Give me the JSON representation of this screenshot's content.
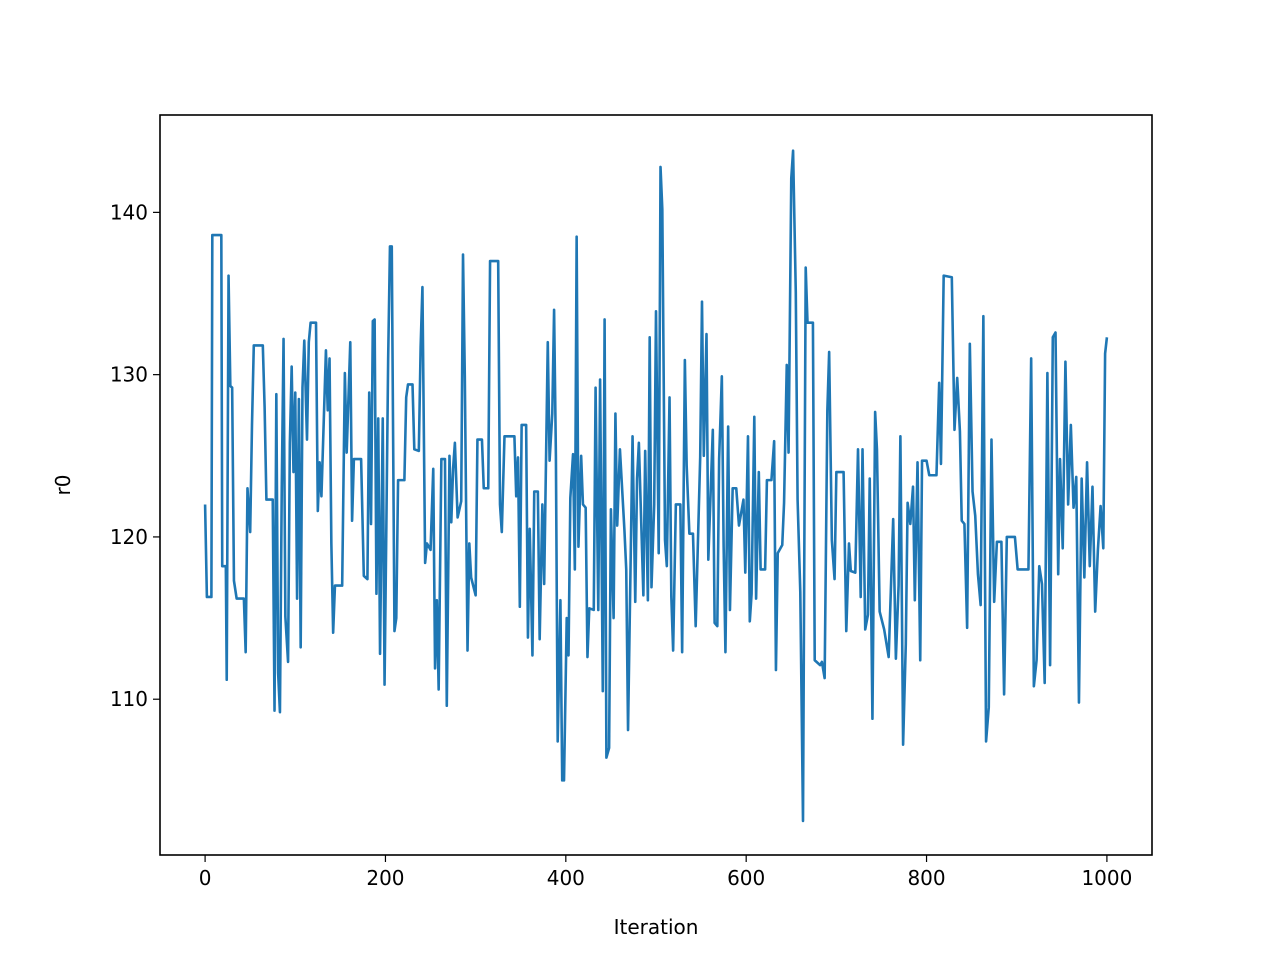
{
  "chart_data": {
    "type": "line",
    "x_label": "Iteration",
    "y_label": "r0",
    "xlim": [
      -50,
      1050
    ],
    "ylim": [
      100.4,
      146
    ],
    "xticks": [
      0,
      200,
      400,
      600,
      800,
      1000
    ],
    "yticks": [
      110,
      120,
      130,
      140
    ],
    "x": [
      0,
      2,
      7,
      8,
      18,
      19,
      23,
      24,
      26,
      28,
      30,
      32,
      35,
      43,
      45,
      47,
      50,
      52,
      54,
      64,
      66,
      68,
      75,
      77,
      79,
      81,
      83,
      85,
      87,
      89,
      92,
      94,
      96,
      98,
      100,
      102,
      104,
      106,
      108,
      110,
      113,
      115,
      117,
      123,
      125,
      127,
      129,
      134,
      136,
      138,
      140,
      142,
      144,
      152,
      155,
      157,
      161,
      163,
      165,
      173,
      176,
      180,
      182,
      184,
      186,
      188,
      190,
      192,
      194,
      197,
      199,
      201,
      203,
      205,
      207,
      210,
      212,
      214,
      221,
      223,
      225,
      230,
      232,
      237,
      239,
      241,
      244,
      246,
      250,
      253,
      255,
      257,
      259,
      262,
      266,
      268,
      271,
      273,
      275,
      277,
      280,
      284,
      286,
      288,
      291,
      293,
      295,
      300,
      302,
      307,
      309,
      314,
      316,
      325,
      327,
      329,
      332,
      343,
      345,
      347,
      349,
      351,
      356,
      358,
      360,
      363,
      365,
      369,
      371,
      374,
      376,
      378,
      380,
      382,
      385,
      387,
      389,
      391,
      394,
      396,
      398,
      401,
      403,
      405,
      408,
      410,
      412,
      414,
      417,
      419,
      422,
      424,
      426,
      431,
      433,
      436,
      438,
      441,
      443,
      445,
      448,
      450,
      453,
      455,
      457,
      460,
      465,
      467,
      469,
      474,
      477,
      479,
      481,
      486,
      488,
      491,
      493,
      495,
      498,
      500,
      503,
      505,
      507,
      510,
      512,
      515,
      517,
      519,
      522,
      527,
      529,
      532,
      534,
      537,
      541,
      544,
      549,
      551,
      553,
      556,
      558,
      563,
      565,
      568,
      570,
      573,
      575,
      577,
      580,
      582,
      585,
      589,
      592,
      597,
      599,
      602,
      604,
      606,
      609,
      611,
      614,
      616,
      621,
      623,
      628,
      631,
      633,
      635,
      640,
      642,
      645,
      647,
      650,
      652,
      655,
      657,
      660,
      663,
      666,
      668,
      674,
      676,
      682,
      684,
      687,
      690,
      692,
      695,
      698,
      700,
      708,
      711,
      714,
      716,
      721,
      724,
      727,
      729,
      732,
      735,
      737,
      740,
      743,
      745,
      748,
      753,
      758,
      763,
      766,
      769,
      771,
      774,
      777,
      779,
      782,
      785,
      787,
      790,
      793,
      795,
      800,
      803,
      811,
      814,
      816,
      819,
      828,
      831,
      834,
      837,
      839,
      842,
      845,
      848,
      851,
      854,
      857,
      860,
      863,
      866,
      869,
      872,
      875,
      878,
      883,
      886,
      889,
      898,
      901,
      913,
      916,
      919,
      922,
      925,
      928,
      931,
      934,
      937,
      940,
      943,
      946,
      948,
      951,
      954,
      957,
      960,
      963,
      966,
      969,
      972,
      975,
      978,
      981,
      984,
      987,
      990,
      993,
      996,
      998,
      1000
    ],
    "series": [
      {
        "color": "#1f77b4",
        "values": [
          122,
          116.3,
          116.3,
          138.6,
          138.6,
          118.2,
          118.2,
          111.2,
          136.1,
          129.3,
          129.2,
          117.3,
          116.2,
          116.2,
          112.9,
          123,
          120.3,
          126.9,
          131.8,
          131.8,
          128,
          122.3,
          122.3,
          109.3,
          128.8,
          111.6,
          109.2,
          123,
          132.2,
          115.1,
          112.3,
          125.8,
          130.5,
          124,
          128.9,
          116.2,
          128.5,
          113.2,
          129.2,
          132.1,
          126,
          132,
          133.2,
          133.2,
          121.6,
          124.6,
          122.5,
          131.5,
          127.8,
          131,
          119.6,
          114.1,
          117,
          117,
          130.1,
          125.2,
          132,
          121,
          124.8,
          124.8,
          117.6,
          117.4,
          128.9,
          120.8,
          133.3,
          133.4,
          116.5,
          127.3,
          112.8,
          127.3,
          110.9,
          120.7,
          131,
          137.9,
          137.9,
          114.2,
          115,
          123.5,
          123.5,
          128.6,
          129.4,
          129.4,
          125.4,
          125.3,
          131.7,
          135.4,
          118.4,
          119.6,
          119.2,
          124.2,
          111.9,
          116.1,
          110.6,
          124.8,
          124.8,
          109.6,
          125,
          120.9,
          124.2,
          125.8,
          121.2,
          122.2,
          137.4,
          129.9,
          113,
          119.6,
          117.5,
          116.4,
          126,
          126,
          123,
          123,
          137,
          137,
          122,
          120.3,
          126.2,
          126.2,
          122.5,
          124.9,
          115.7,
          126.9,
          126.9,
          113.8,
          120.5,
          112.7,
          122.8,
          122.8,
          113.7,
          122,
          117.1,
          124.6,
          132,
          124.7,
          127.6,
          134,
          125,
          107.4,
          116.1,
          105,
          105,
          115,
          112.7,
          122.4,
          125.1,
          118,
          138.5,
          119.4,
          125,
          122,
          121.8,
          112.6,
          115.6,
          115.5,
          129.2,
          115.5,
          129.7,
          110.5,
          133.4,
          106.4,
          107,
          121.7,
          115,
          127.6,
          120.7,
          125.4,
          120.4,
          118,
          108.1,
          126.2,
          116,
          123.6,
          125.8,
          116.4,
          125.3,
          116.1,
          132.3,
          116.9,
          122,
          133.9,
          119,
          142.8,
          140.2,
          119.8,
          118.2,
          128.6,
          116.3,
          113,
          122,
          122,
          112.9,
          130.9,
          124.4,
          120.2,
          120.2,
          114.5,
          124.9,
          134.5,
          125,
          132.5,
          118.6,
          126.6,
          114.7,
          114.5,
          124.8,
          129.9,
          119.4,
          112.9,
          126.8,
          115.5,
          123,
          123,
          120.7,
          122.3,
          117.8,
          126.2,
          114.8,
          116.5,
          127.4,
          116.2,
          124,
          118,
          118,
          123.5,
          123.5,
          125.9,
          111.8,
          119,
          119.5,
          122.1,
          130.6,
          125.2,
          142.1,
          143.8,
          135.1,
          122.3,
          116.6,
          102.5,
          136.6,
          133.2,
          133.2,
          112.4,
          112.1,
          112.3,
          111.3,
          127.8,
          131.4,
          119.8,
          117.4,
          124,
          124,
          114.2,
          119.6,
          117.9,
          117.8,
          125.4,
          116.3,
          125.4,
          114.3,
          115.2,
          123.6,
          108.8,
          127.7,
          125.4,
          115.4,
          114.3,
          112.6,
          121.1,
          112.5,
          117,
          126.2,
          107.2,
          113.4,
          122.1,
          120.8,
          123.1,
          116.1,
          124.6,
          112.4,
          124.7,
          124.7,
          123.8,
          123.8,
          129.5,
          124.5,
          136.1,
          136,
          126.6,
          129.8,
          126.5,
          121,
          120.8,
          114.4,
          131.9,
          122.8,
          121.3,
          117.7,
          115.8,
          133.6,
          107.4,
          109.5,
          126,
          116,
          119.7,
          119.7,
          110.3,
          120,
          120,
          118,
          118,
          131,
          110.8,
          112.4,
          118.2,
          117.1,
          111,
          130.1,
          112.1,
          132.3,
          132.6,
          117.7,
          124.8,
          119.3,
          130.8,
          122,
          126.9,
          121.8,
          123.7,
          109.8,
          123.6,
          117.5,
          124.6,
          118.2,
          123.1,
          115.4,
          119.2,
          121.9,
          119.3,
          131.3,
          132.3
        ]
      }
    ]
  }
}
